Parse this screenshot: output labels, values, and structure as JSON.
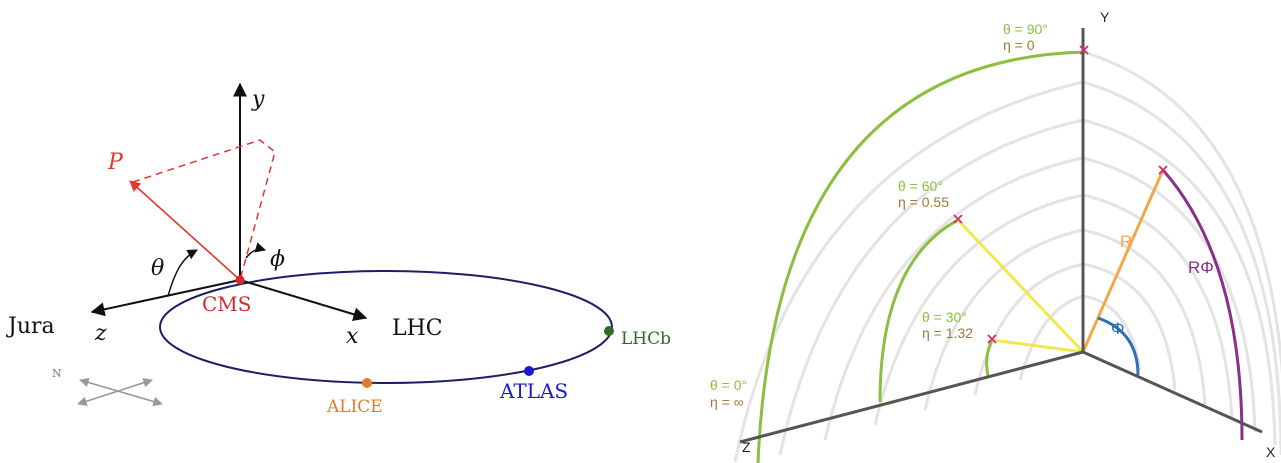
{
  "left_diagram": {
    "axes": {
      "y": "y",
      "z": "z",
      "x": "x"
    },
    "momentum": "P",
    "angles": {
      "theta": "θ",
      "phi": "ϕ"
    },
    "labels": {
      "jura": "Jura",
      "lhc": "LHC",
      "cms": "CMS",
      "compass_n": "N"
    },
    "detectors": [
      {
        "name": "LHCb",
        "color": "#2e6b2a"
      },
      {
        "name": "ATLAS",
        "color": "#1a1ad6"
      },
      {
        "name": "ALICE",
        "color": "#e07b2a"
      }
    ],
    "colors": {
      "ring": "#1a1f66",
      "momentum": "#e5362e",
      "cms": "#d32b2b"
    }
  },
  "right_diagram": {
    "axes": {
      "y": "Y",
      "x": "X",
      "z": "Z"
    },
    "vectors": {
      "r": "R",
      "rphi": "RΦ",
      "phi": "Φ"
    },
    "markers": [
      {
        "theta": "θ = 90°",
        "eta": "η = 0"
      },
      {
        "theta": "θ = 60°",
        "eta": "η = 0.55"
      },
      {
        "theta": "θ = 30°",
        "eta": "η = 1.32"
      },
      {
        "theta": "θ = 0°",
        "eta": "η = ∞"
      }
    ],
    "colors": {
      "theta": "#8cbf3f",
      "eta": "#9a7b3a",
      "radial": "#f2e84a",
      "r": "#f0a84a",
      "rphi": "#8a2f8a",
      "phi": "#2e6fb4",
      "mark": "#d0306a"
    }
  }
}
